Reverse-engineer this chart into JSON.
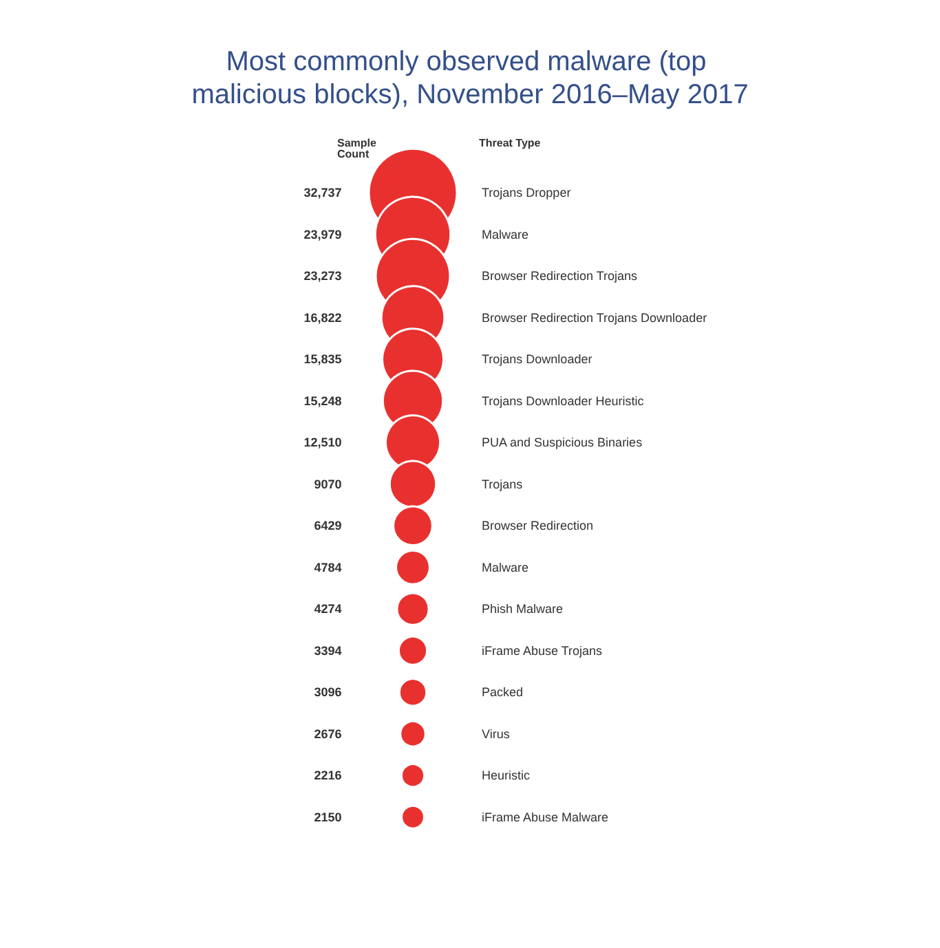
{
  "chart_data": {
    "type": "other",
    "title": "Most commonly observed malware (top malicious blocks), November 2016–May 2017",
    "annotations": [
      "Sample Count",
      "Threat Type"
    ],
    "categories": [
      "Trojans Dropper",
      "Malware",
      "Browser Redirection Trojans",
      "Browser Redirection Trojans Downloader",
      "Trojans Downloader",
      "Trojans Downloader Heuristic",
      "PUA and Suspicious Binaries",
      "Trojans",
      "Browser Redirection",
      "Malware",
      "Phish Malware",
      "iFrame Abuse Trojans",
      "Packed",
      "Virus",
      "Heuristic",
      "iFrame Abuse Malware"
    ],
    "values": [
      32737,
      23979,
      23273,
      16822,
      15835,
      15248,
      12510,
      9070,
      6429,
      4784,
      4274,
      3394,
      3096,
      2676,
      2216,
      2150
    ],
    "value_labels": [
      "32,737",
      "23,979",
      "23,273",
      "16,822",
      "15,835",
      "15,248",
      "12,510",
      "9070",
      "6429",
      "4784",
      "4274",
      "3394",
      "3096",
      "2676",
      "2216",
      "2150"
    ],
    "color": "#e8312f"
  }
}
